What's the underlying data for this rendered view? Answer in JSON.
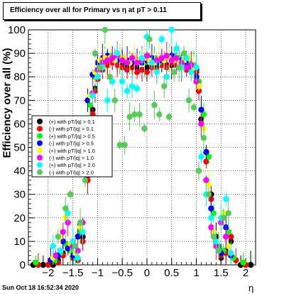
{
  "title": "Efficiency over all for Primary vs   η at pT > 0.11",
  "timestamp": "Sun Oct 18 16:52:34 2020",
  "chart_data": {
    "type": "scatter",
    "title": "Efficiency over all for Primary vs   η at pT > 0.11",
    "xlabel": "η",
    "ylabel": "Efficiency over all (%)",
    "xlim": [
      -2.4,
      2.2
    ],
    "ylim": [
      0,
      100
    ],
    "xticks": [
      -2,
      -1.5,
      -1,
      -0.5,
      0,
      0.5,
      1,
      1.5,
      2
    ],
    "xtick_labels": [
      "−2",
      "−1.5",
      "−1",
      "−0.5",
      "0",
      "0.5",
      "1",
      "1.5",
      "2"
    ],
    "yticks": [
      0,
      10,
      20,
      30,
      40,
      50,
      60,
      70,
      80,
      90,
      100
    ],
    "ytick_labels": [
      "0",
      "10",
      "20",
      "30",
      "40",
      "50",
      "60",
      "70",
      "80",
      "90",
      "100"
    ],
    "grid": true,
    "legend_position": "left-middle",
    "series": [
      {
        "name": "(+) with pT/|q| > 0.1",
        "color": "#000000",
        "x": [
          -2.3,
          -2.1,
          -1.9,
          -1.8,
          -1.7,
          -1.6,
          -1.5,
          -1.4,
          -1.3,
          -1.2,
          -1.1,
          -1.05,
          -1.0,
          -0.9,
          -0.8,
          -0.7,
          -0.6,
          -0.5,
          -0.4,
          -0.3,
          -0.2,
          -0.1,
          0.0,
          0.1,
          0.2,
          0.3,
          0.4,
          0.5,
          0.6,
          0.7,
          0.8,
          0.9,
          1.0,
          1.05,
          1.1,
          1.2,
          1.3,
          1.4,
          1.5,
          1.6,
          1.7,
          1.9,
          2.1
        ],
        "y": [
          0,
          0,
          0,
          2,
          5,
          8,
          4,
          2,
          12,
          38,
          66,
          75,
          80,
          84,
          86,
          87,
          86,
          85,
          84,
          85,
          84,
          83,
          84,
          85,
          84,
          86,
          85,
          85,
          86,
          84,
          85,
          84,
          83,
          76,
          62,
          48,
          30,
          12,
          3,
          6,
          10,
          0,
          0
        ]
      },
      {
        "name": "(-) with pT/|q| > 0.1",
        "color": "#ff0000",
        "x": [
          -2.2,
          -2.0,
          -1.8,
          -1.7,
          -1.6,
          -1.5,
          -1.4,
          -1.3,
          -1.2,
          -1.1,
          -1.05,
          -1.0,
          -0.9,
          -0.8,
          -0.7,
          -0.6,
          -0.5,
          -0.4,
          -0.3,
          -0.2,
          -0.1,
          0.0,
          0.1,
          0.2,
          0.3,
          0.4,
          0.5,
          0.6,
          0.7,
          0.8,
          0.9,
          1.0,
          1.05,
          1.1,
          1.2,
          1.3,
          1.4,
          1.5,
          1.6,
          1.7,
          1.8,
          2.0
        ],
        "y": [
          0,
          0,
          1,
          4,
          7,
          3,
          2,
          10,
          36,
          64,
          74,
          79,
          83,
          85,
          86,
          85,
          84,
          83,
          84,
          82,
          83,
          82,
          84,
          83,
          85,
          84,
          86,
          85,
          84,
          83,
          84,
          82,
          74,
          60,
          44,
          28,
          10,
          4,
          5,
          12,
          2,
          0
        ]
      },
      {
        "name": "(+) with pT/|q| > 0.5",
        "color": "#00ff00",
        "x": [
          -2.25,
          -1.85,
          -1.75,
          -1.65,
          -1.55,
          -1.45,
          -1.35,
          -1.25,
          -1.15,
          -1.05,
          -0.95,
          -0.85,
          -0.75,
          -0.65,
          -0.55,
          -0.45,
          -0.35,
          -0.25,
          -0.15,
          -0.05,
          0.05,
          0.15,
          0.25,
          0.35,
          0.45,
          0.55,
          0.65,
          0.75,
          0.85,
          0.95,
          1.05,
          1.15,
          1.25,
          1.35,
          1.45,
          1.55,
          1.65,
          1.75,
          1.95
        ],
        "y": [
          1,
          2,
          5,
          9,
          6,
          3,
          14,
          40,
          68,
          80,
          86,
          88,
          89,
          88,
          87,
          87,
          86,
          88,
          87,
          86,
          87,
          88,
          86,
          87,
          88,
          89,
          88,
          87,
          86,
          85,
          78,
          64,
          46,
          22,
          8,
          6,
          14,
          3,
          1
        ]
      },
      {
        "name": "(-) with pT/|q| > 0.5",
        "color": "#0000ff",
        "x": [
          -1.95,
          -1.8,
          -1.7,
          -1.6,
          -1.5,
          -1.4,
          -1.3,
          -1.2,
          -1.1,
          -1.0,
          -0.9,
          -0.8,
          -0.7,
          -0.6,
          -0.5,
          -0.4,
          -0.3,
          -0.2,
          -0.1,
          0.0,
          0.1,
          0.2,
          0.3,
          0.4,
          0.5,
          0.6,
          0.7,
          0.8,
          0.9,
          1.0,
          1.1,
          1.2,
          1.3,
          1.4,
          1.5,
          1.6,
          1.7
        ],
        "y": [
          2,
          4,
          10,
          7,
          4,
          12,
          42,
          70,
          81,
          86,
          88,
          89,
          88,
          87,
          88,
          87,
          86,
          87,
          86,
          87,
          88,
          86,
          87,
          88,
          89,
          88,
          87,
          86,
          85,
          80,
          66,
          48,
          24,
          10,
          5,
          16,
          4
        ]
      },
      {
        "name": "(+) with pT/|q| > 1.0",
        "color": "#ffff00",
        "x": [
          -1.9,
          -1.75,
          -1.65,
          -1.55,
          -1.45,
          -1.35,
          -1.25,
          -1.15,
          -1.05,
          -0.95,
          -0.85,
          -0.75,
          -0.65,
          -0.55,
          -0.45,
          -0.35,
          -0.25,
          -0.15,
          -0.05,
          0.05,
          0.15,
          0.25,
          0.35,
          0.45,
          0.55,
          0.65,
          0.75,
          0.85,
          0.95,
          1.05,
          1.15,
          1.25,
          1.35,
          1.45,
          1.55,
          1.65
        ],
        "y": [
          3,
          12,
          20,
          9,
          5,
          16,
          44,
          72,
          82,
          87,
          88,
          88,
          87,
          89,
          88,
          86,
          88,
          87,
          88,
          87,
          86,
          88,
          87,
          88,
          87,
          86,
          87,
          88,
          84,
          76,
          58,
          34,
          14,
          6,
          22,
          8
        ]
      },
      {
        "name": "(-) with pT/|q| > 1.0",
        "color": "#ff00ff",
        "x": [
          -1.85,
          -1.7,
          -1.6,
          -1.5,
          -1.4,
          -1.3,
          -1.2,
          -1.1,
          -1.0,
          -0.9,
          -0.8,
          -0.7,
          -0.6,
          -0.5,
          -0.4,
          -0.3,
          -0.2,
          -0.1,
          0.0,
          0.1,
          0.2,
          0.3,
          0.4,
          0.5,
          0.6,
          0.7,
          0.8,
          0.9,
          1.0,
          1.1,
          1.2,
          1.3,
          1.4,
          1.5,
          1.6
        ],
        "y": [
          4,
          14,
          18,
          8,
          6,
          18,
          46,
          73,
          83,
          86,
          87,
          88,
          89,
          87,
          86,
          88,
          86,
          87,
          89,
          86,
          87,
          88,
          89,
          87,
          88,
          86,
          84,
          85,
          78,
          60,
          36,
          16,
          8,
          18,
          12
        ]
      },
      {
        "name": "(+) with pT/|q| > 2.0",
        "color": "#00ffff",
        "x": [
          -1.9,
          -1.75,
          -1.6,
          -1.5,
          -1.4,
          -1.3,
          -1.2,
          -1.1,
          -1.0,
          -0.9,
          -0.8,
          -0.7,
          -0.6,
          -0.5,
          -0.4,
          -0.3,
          -0.2,
          -0.1,
          0.0,
          0.1,
          0.2,
          0.3,
          0.4,
          0.5,
          0.6,
          0.7,
          0.8,
          0.9,
          1.0,
          1.1,
          1.2,
          1.3,
          1.4,
          1.5,
          1.6,
          1.7
        ],
        "y": [
          8,
          6,
          22,
          10,
          3,
          14,
          40,
          72,
          80,
          84,
          70,
          78,
          90,
          78,
          74,
          76,
          75,
          88,
          97,
          86,
          82,
          96,
          80,
          100,
          92,
          84,
          88,
          82,
          84,
          46,
          30,
          20,
          10,
          20,
          28,
          5
        ]
      },
      {
        "name": "(-) with pT/|q| > 2.0",
        "color": "#55cc55",
        "x": [
          -1.8,
          -1.65,
          -1.55,
          -1.45,
          -1.35,
          -1.25,
          -1.15,
          -1.05,
          -0.95,
          -0.85,
          -0.75,
          -0.65,
          -0.55,
          -0.45,
          -0.35,
          -0.25,
          -0.15,
          -0.05,
          0.05,
          0.15,
          0.25,
          0.35,
          0.45,
          0.55,
          0.65,
          0.75,
          0.85,
          0.95,
          1.05,
          1.15,
          1.25,
          1.35,
          1.45,
          1.55,
          1.65
        ],
        "y": [
          12,
          24,
          30,
          8,
          18,
          36,
          62,
          90,
          84,
          100,
          80,
          70,
          51,
          51,
          63,
          64,
          64,
          58,
          96,
          68,
          64,
          76,
          63,
          82,
          84,
          90,
          70,
          67,
          40,
          54,
          30,
          12,
          6,
          20,
          22
        ]
      }
    ]
  }
}
